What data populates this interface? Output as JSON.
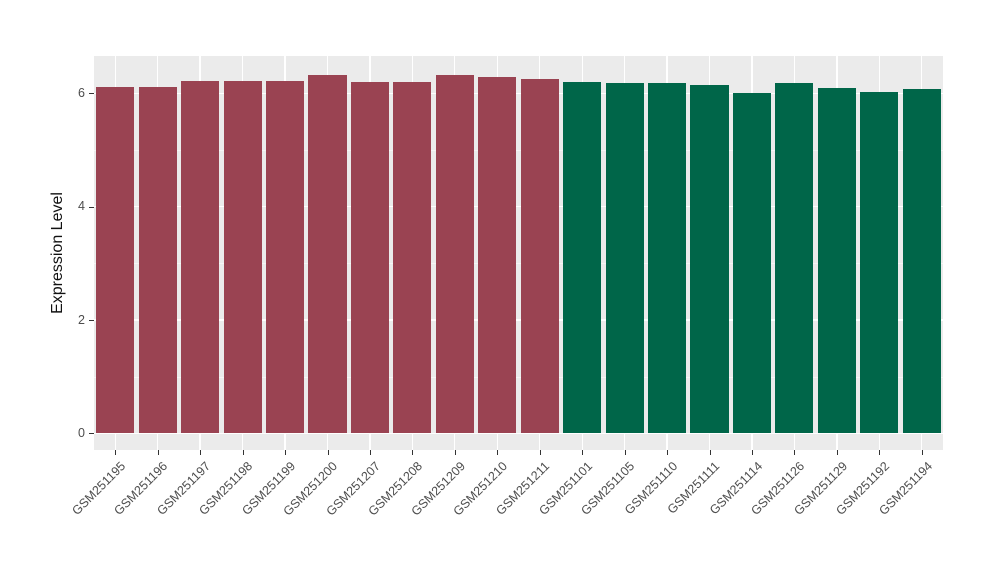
{
  "figure": {
    "background": "#FFFFFF",
    "panel_background": "#EBEBEB",
    "grid_major_color": "#FFFFFF",
    "grid_minor_color": "#F6F6F6",
    "tick_mark_color": "#333333",
    "axis_text_color": "#4D4D4D",
    "axis_title_color": "#111111"
  },
  "chart_data": {
    "type": "bar",
    "title": "",
    "xlabel": "",
    "ylabel": "Expression Level",
    "ylim": [
      -0.28,
      6.66
    ],
    "yticks": [
      0,
      2,
      4,
      6
    ],
    "yminor": [
      1,
      3,
      5
    ],
    "legend_position": "none",
    "grid": "horizontal major+minor, vertical major at each category",
    "bar_width_fraction": 0.9,
    "series": [
      {
        "name": "group-red",
        "color": "#9A4352",
        "categories": [
          "GSM251195",
          "GSM251196",
          "GSM251197",
          "GSM251198",
          "GSM251199",
          "GSM251200",
          "GSM251207",
          "GSM251208",
          "GSM251209",
          "GSM251210",
          "GSM251211"
        ],
        "values": [
          6.11,
          6.11,
          6.22,
          6.22,
          6.22,
          6.32,
          6.2,
          6.2,
          6.33,
          6.29,
          6.26
        ]
      },
      {
        "name": "group-green",
        "color": "#006649",
        "categories": [
          "GSM251101",
          "GSM251105",
          "GSM251110",
          "GSM251111",
          "GSM251114",
          "GSM251126",
          "GSM251129",
          "GSM251192",
          "GSM251194"
        ],
        "values": [
          6.2,
          6.19,
          6.19,
          6.15,
          6.0,
          6.19,
          6.09,
          6.03,
          6.08
        ]
      }
    ]
  }
}
